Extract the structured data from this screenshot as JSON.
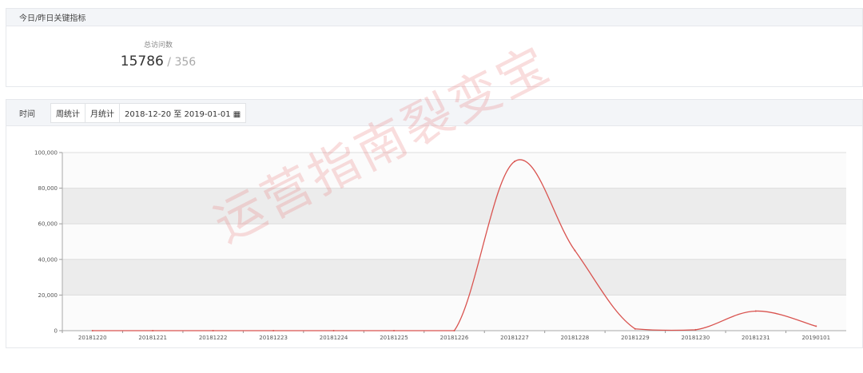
{
  "kpi_panel": {
    "title": "今日/昨日关键指标",
    "metric_label": "总访问数",
    "today": "15786",
    "separator": " / ",
    "yesterday": "356"
  },
  "filter": {
    "label": "时间",
    "week_button": "周统计",
    "month_button": "月统计",
    "date_range": "2018-12-20 至 2019-01-01",
    "calendar_icon": "calendar-icon"
  },
  "watermark": "运营指南裂变宝",
  "chart_data": {
    "type": "line",
    "categories": [
      "20181220",
      "20181221",
      "20181222",
      "20181223",
      "20181224",
      "20181225",
      "20181226",
      "20181227",
      "20181228",
      "20181229",
      "20181230",
      "20181231",
      "20190101"
    ],
    "series": [
      {
        "values": [
          0,
          0,
          0,
          0,
          0,
          0,
          0,
          95000,
          45000,
          1000,
          500,
          11000,
          2500
        ],
        "color": "#d9534f"
      }
    ],
    "ylim": [
      0,
      100000
    ],
    "yticks": [
      "0",
      "20,000",
      "40,000",
      "60,000",
      "80,000",
      "100,000"
    ],
    "grid": "alternating bands"
  }
}
